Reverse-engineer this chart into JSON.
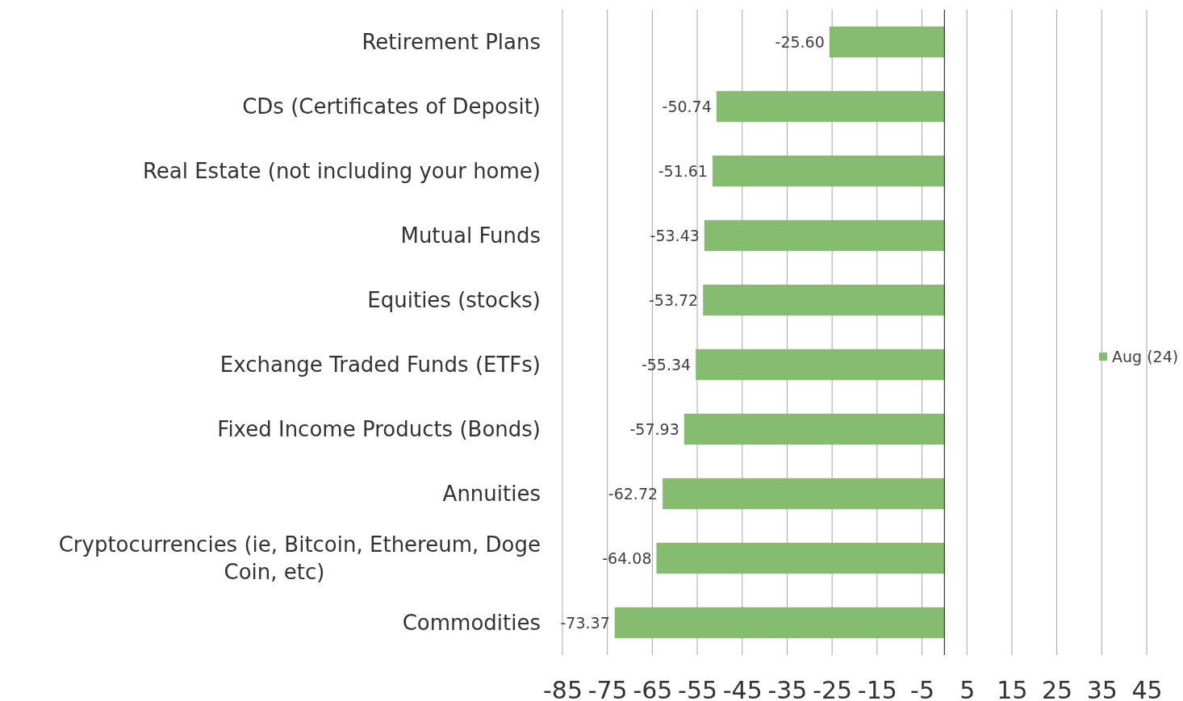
{
  "chart_data": {
    "type": "bar",
    "orientation": "horizontal",
    "categories": [
      "Retirement Plans",
      "CDs (Certificates of Deposit)",
      "Real Estate (not including your home)",
      "Mutual Funds",
      "Equities (stocks)",
      "Exchange Traded Funds (ETFs)",
      "Fixed Income Products (Bonds)",
      "Annuities",
      "Cryptocurrencies (ie, Bitcoin, Ethereum, Doge Coin, etc)",
      "Commodities"
    ],
    "series": [
      {
        "name": "Aug (24)",
        "color": "#86bc6f",
        "values": [
          -25.6,
          -50.74,
          -51.61,
          -53.43,
          -53.72,
          -55.34,
          -57.93,
          -62.72,
          -64.08,
          -73.37
        ],
        "value_labels": [
          "-25.60",
          "-50.74",
          "-51.61",
          "-53.43",
          "-53.72",
          "-55.34",
          "-57.93",
          "-62.72",
          "-64.08",
          "-73.37"
        ]
      }
    ],
    "xlim": [
      -85,
      45
    ],
    "xticks": [
      -85,
      -75,
      -65,
      -55,
      -45,
      -35,
      -25,
      -15,
      -5,
      5,
      15,
      25,
      35,
      45
    ],
    "grid": "x",
    "legend": "right"
  }
}
